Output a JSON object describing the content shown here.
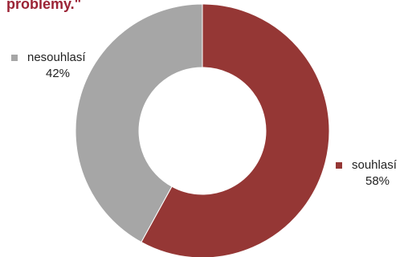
{
  "colors": {
    "title": "#9b2335",
    "souhlasi": "#953735",
    "nesouhlasi": "#a6a6a6"
  },
  "chart_data": {
    "type": "pie",
    "variant": "donut",
    "title": "problémy.\"",
    "slices": [
      {
        "label": "souhlasí",
        "percent_label": "58%",
        "value": 58,
        "color": "#953735"
      },
      {
        "label": "nesouhlasí",
        "percent_label": "42%",
        "value": 42,
        "color": "#a6a6a6"
      }
    ],
    "legend_placement": "beside-slices"
  }
}
